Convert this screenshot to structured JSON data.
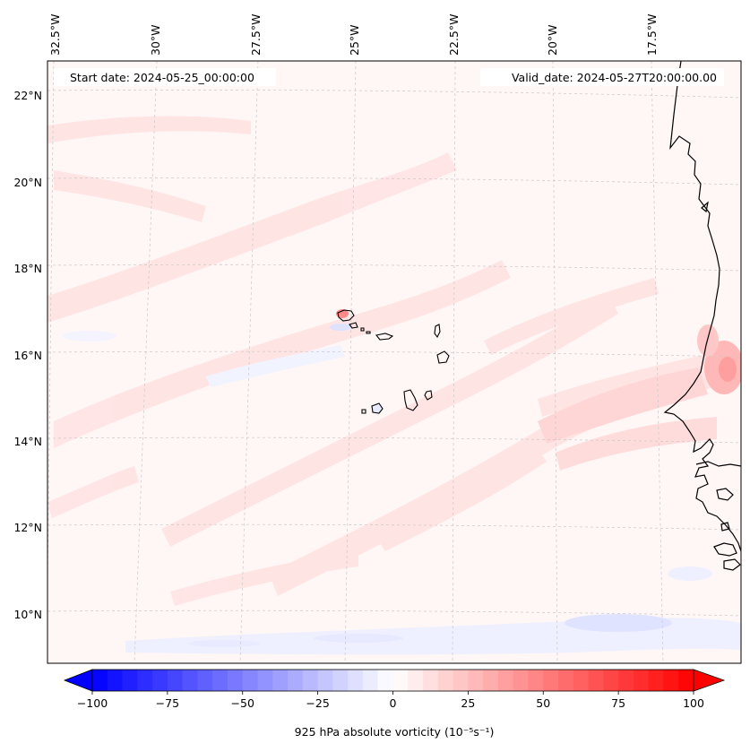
{
  "map": {
    "start_label": "Start date: 2024-05-25_00:00:00",
    "valid_label": "Valid_date: 2024-05-27T20:00:00.00",
    "lon_labels": [
      "32.5°W",
      "30°W",
      "27.5°W",
      "25°W",
      "22.5°W",
      "20°W",
      "17.5°W"
    ],
    "lat_labels": [
      "22°N",
      "20°N",
      "18°N",
      "16°N",
      "14°N",
      "12°N",
      "10°N"
    ],
    "variable": "925 hPa absolute vorticity",
    "units": "(10⁻⁵s⁻¹)",
    "regions": [
      "Cabo Verde islands",
      "West African coast (Mauritania, Senegal, Guinea-Bissau)"
    ]
  },
  "colorbar": {
    "min": -100,
    "max": 100,
    "step": 5,
    "tick_values": [
      -100,
      -75,
      -50,
      -25,
      0,
      25,
      50,
      75,
      100
    ],
    "tick_labels": [
      "−100",
      "−75",
      "−50",
      "−25",
      "0",
      "25",
      "50",
      "75",
      "100"
    ],
    "low_color": "#0000ff",
    "mid_color": "#ffffff",
    "high_color": "#ff0000"
  },
  "colors": {
    "background_field": "#fff6f6",
    "weak_positive": "#ffe6e6",
    "moderate_positive": "#ffd0d0",
    "weak_negative": "#eef0ff",
    "coastline": "#000000",
    "gridline": "#c8c8c8"
  }
}
